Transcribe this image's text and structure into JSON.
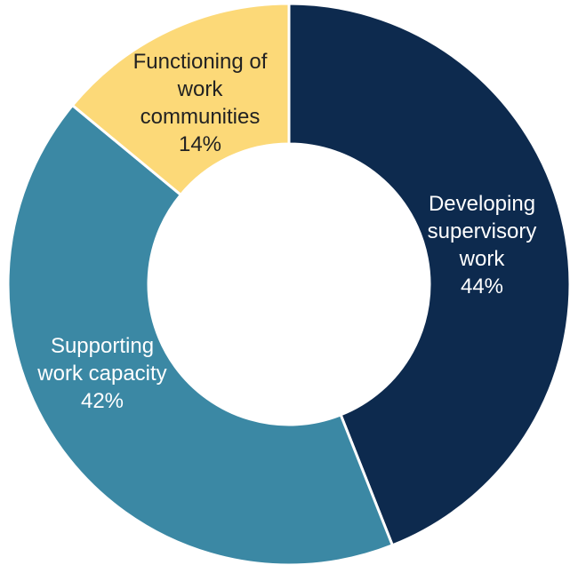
{
  "chart_data": {
    "type": "donut",
    "title": "",
    "slices": [
      {
        "name_lines": [
          "Developing",
          "supervisory",
          "work"
        ],
        "percent_label": "44%",
        "value": 44,
        "color": "#0d2a4e",
        "label_color": "#ffffff"
      },
      {
        "name_lines": [
          "Supporting",
          "work capacity"
        ],
        "percent_label": "42%",
        "value": 42,
        "color": "#3b88a4",
        "label_color": "#ffffff"
      },
      {
        "name_lines": [
          "Functioning of",
          "work",
          "communities"
        ],
        "percent_label": "14%",
        "value": 14,
        "color": "#fcd978",
        "label_color": "#222222"
      }
    ],
    "start_angle_deg": 0,
    "direction": "clockwise",
    "legend": "none",
    "separator_color": "#ffffff"
  }
}
